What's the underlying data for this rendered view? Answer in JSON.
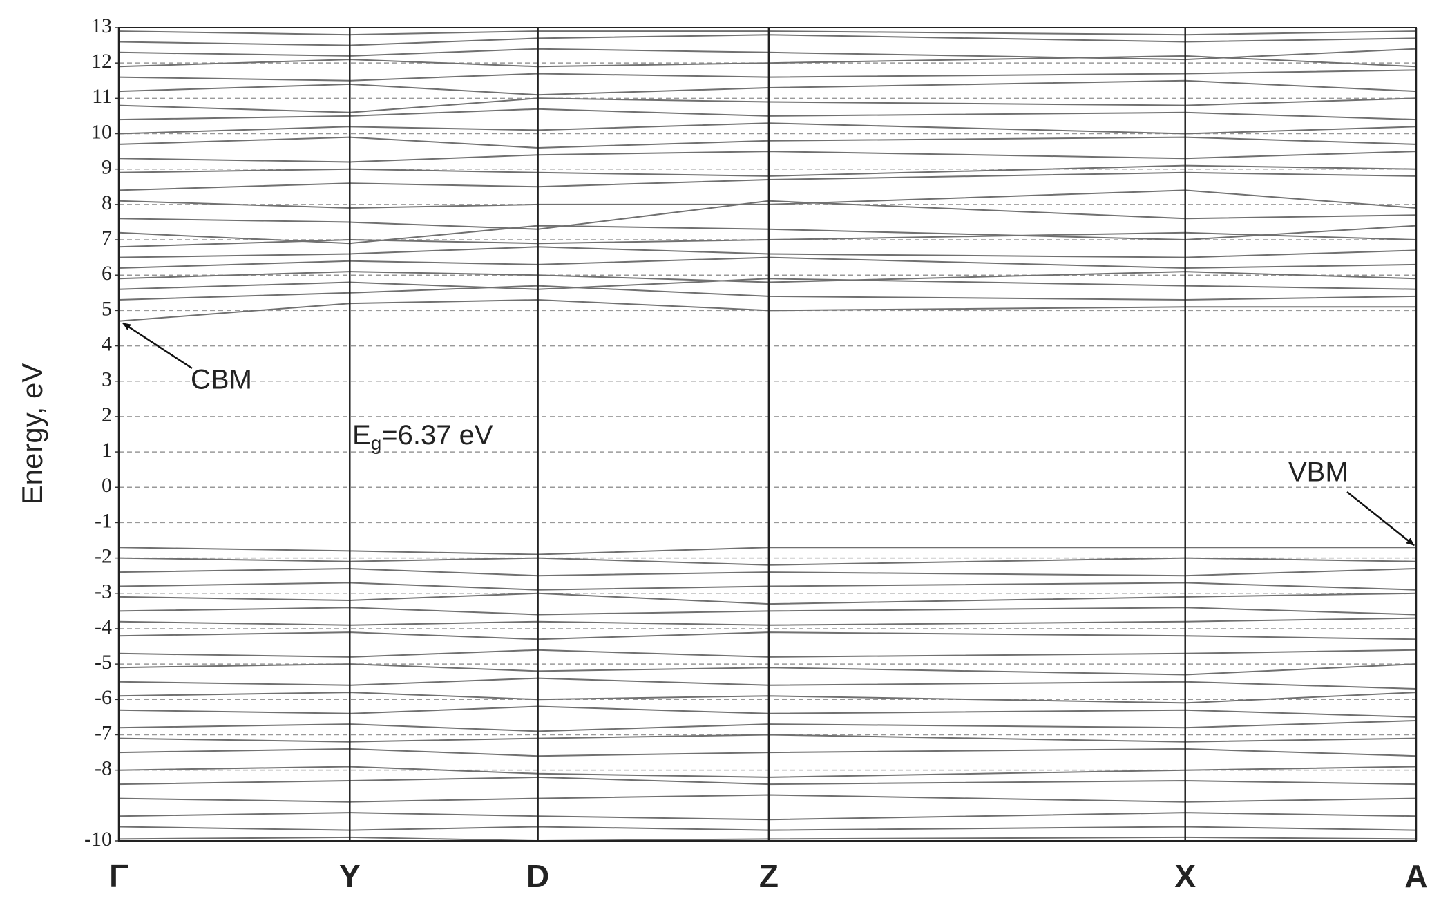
{
  "chart_data": {
    "type": "band-structure",
    "ylabel": "Energy, eV",
    "xlim": [
      0,
      1
    ],
    "xticks": [
      {
        "value": 0,
        "label": "Γ"
      },
      {
        "value": 0.178,
        "label": "Y"
      },
      {
        "value": 0.323,
        "label": "D"
      },
      {
        "value": 0.501,
        "label": "Z"
      },
      {
        "value": 0.822,
        "label": "X"
      },
      {
        "value": 1,
        "label": "A"
      }
    ],
    "ylim": [
      -10,
      13
    ],
    "yticks": [
      -10,
      -8,
      -7,
      -6,
      -5,
      -4,
      -3,
      -2,
      -1,
      0,
      1,
      2,
      3,
      4,
      5,
      6,
      7,
      8,
      9,
      10,
      11,
      12,
      13
    ],
    "grid": true,
    "line_color": "#707070",
    "x": [
      0,
      0.178,
      0.323,
      0.501,
      0.822,
      1
    ],
    "series": [
      {
        "values": [
          4.7,
          5.2,
          5.3,
          5.0,
          5.1,
          5.1
        ]
      },
      {
        "values": [
          5.3,
          5.5,
          5.7,
          5.4,
          5.3,
          5.4
        ]
      },
      {
        "values": [
          5.6,
          5.8,
          5.6,
          5.9,
          5.7,
          5.6
        ]
      },
      {
        "values": [
          5.9,
          6.1,
          6.0,
          5.8,
          6.1,
          5.9
        ]
      },
      {
        "values": [
          6.2,
          6.4,
          6.3,
          6.5,
          6.2,
          6.3
        ]
      },
      {
        "values": [
          6.5,
          6.6,
          6.8,
          6.6,
          6.5,
          6.7
        ]
      },
      {
        "values": [
          6.8,
          7.0,
          6.9,
          7.0,
          7.2,
          7.0
        ]
      },
      {
        "values": [
          7.2,
          6.9,
          7.4,
          7.3,
          7.0,
          7.4
        ]
      },
      {
        "values": [
          7.6,
          7.5,
          7.3,
          8.1,
          7.6,
          7.7
        ]
      },
      {
        "values": [
          8.1,
          7.9,
          8.0,
          8.0,
          8.4,
          7.9
        ]
      },
      {
        "values": [
          8.4,
          8.6,
          8.5,
          8.7,
          8.9,
          8.8
        ]
      },
      {
        "values": [
          8.9,
          9.0,
          8.9,
          8.8,
          9.1,
          9.0
        ]
      },
      {
        "values": [
          9.3,
          9.2,
          9.4,
          9.5,
          9.3,
          9.5
        ]
      },
      {
        "values": [
          9.7,
          9.9,
          9.6,
          9.8,
          9.9,
          9.7
        ]
      },
      {
        "values": [
          10.0,
          10.2,
          10.1,
          10.3,
          10.0,
          10.2
        ]
      },
      {
        "values": [
          10.4,
          10.5,
          10.7,
          10.5,
          10.6,
          10.4
        ]
      },
      {
        "values": [
          10.8,
          10.6,
          11.0,
          10.9,
          10.8,
          11.0
        ]
      },
      {
        "values": [
          11.2,
          11.4,
          11.1,
          11.3,
          11.5,
          11.2
        ]
      },
      {
        "values": [
          11.6,
          11.5,
          11.7,
          11.6,
          11.7,
          11.8
        ]
      },
      {
        "values": [
          11.9,
          12.1,
          11.9,
          12.0,
          12.2,
          11.9
        ]
      },
      {
        "values": [
          12.3,
          12.2,
          12.4,
          12.3,
          12.1,
          12.4
        ]
      },
      {
        "values": [
          12.6,
          12.5,
          12.7,
          12.8,
          12.6,
          12.7
        ]
      },
      {
        "values": [
          12.9,
          12.8,
          12.9,
          12.9,
          12.8,
          12.9
        ]
      },
      {
        "values": [
          -1.7,
          -1.8,
          -1.9,
          -1.7,
          -1.7,
          -1.7
        ]
      },
      {
        "values": [
          -2.0,
          -2.1,
          -2.0,
          -2.2,
          -2.0,
          -2.1
        ]
      },
      {
        "values": [
          -2.4,
          -2.3,
          -2.5,
          -2.4,
          -2.5,
          -2.3
        ]
      },
      {
        "values": [
          -2.8,
          -2.7,
          -2.9,
          -2.8,
          -2.7,
          -2.9
        ]
      },
      {
        "values": [
          -3.1,
          -3.2,
          -3.0,
          -3.3,
          -3.1,
          -3.0
        ]
      },
      {
        "values": [
          -3.5,
          -3.4,
          -3.6,
          -3.5,
          -3.4,
          -3.6
        ]
      },
      {
        "values": [
          -3.8,
          -3.9,
          -3.8,
          -3.9,
          -3.8,
          -3.7
        ]
      },
      {
        "values": [
          -4.2,
          -4.1,
          -4.3,
          -4.1,
          -4.2,
          -4.3
        ]
      },
      {
        "values": [
          -4.7,
          -4.8,
          -4.6,
          -4.8,
          -4.7,
          -4.6
        ]
      },
      {
        "values": [
          -5.1,
          -5.0,
          -5.2,
          -5.1,
          -5.3,
          -5.0
        ]
      },
      {
        "values": [
          -5.5,
          -5.6,
          -5.4,
          -5.6,
          -5.5,
          -5.7
        ]
      },
      {
        "values": [
          -5.9,
          -5.8,
          -6.0,
          -5.9,
          -6.1,
          -5.8
        ]
      },
      {
        "values": [
          -6.3,
          -6.4,
          -6.2,
          -6.4,
          -6.3,
          -6.5
        ]
      },
      {
        "values": [
          -6.8,
          -6.7,
          -6.9,
          -6.7,
          -6.8,
          -6.6
        ]
      },
      {
        "values": [
          -7.1,
          -7.2,
          -7.1,
          -7.0,
          -7.2,
          -7.1
        ]
      },
      {
        "values": [
          -7.5,
          -7.4,
          -7.6,
          -7.5,
          -7.4,
          -7.6
        ]
      },
      {
        "values": [
          -8.0,
          -7.9,
          -8.1,
          -8.2,
          -8.0,
          -7.9
        ]
      },
      {
        "values": [
          -8.4,
          -8.3,
          -8.2,
          -8.4,
          -8.3,
          -8.4
        ]
      },
      {
        "values": [
          -8.8,
          -8.9,
          -8.8,
          -8.7,
          -8.9,
          -8.8
        ]
      },
      {
        "values": [
          -9.3,
          -9.2,
          -9.3,
          -9.4,
          -9.2,
          -9.3
        ]
      },
      {
        "values": [
          -9.6,
          -9.7,
          -9.6,
          -9.7,
          -9.6,
          -9.7
        ]
      },
      {
        "values": [
          -9.95,
          -9.9,
          -10.0,
          -9.95,
          -9.9,
          -9.95
        ]
      }
    ],
    "annotations": [
      {
        "text": "CBM",
        "xy": [
          0,
          4.7
        ]
      },
      {
        "text": "VBM",
        "xy": [
          1,
          -1.7
        ]
      },
      {
        "text": "E",
        "subscript": "g",
        "suffix": "=6.37 eV"
      }
    ]
  }
}
